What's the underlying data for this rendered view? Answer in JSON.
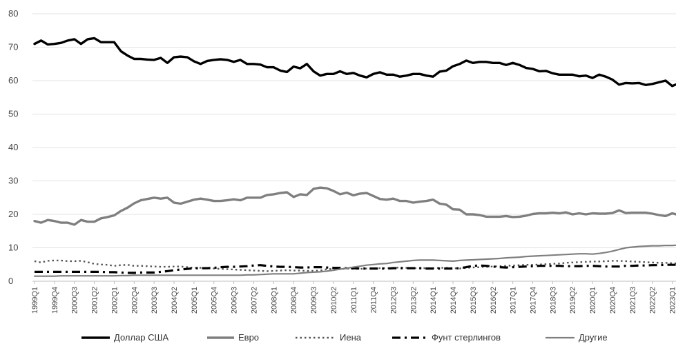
{
  "chart_data": {
    "type": "line",
    "title": "",
    "xlabel": "",
    "ylabel": "",
    "ylim": [
      0,
      80
    ],
    "yticks": [
      0,
      10,
      20,
      30,
      40,
      50,
      60,
      70,
      80
    ],
    "grid": "horizontal",
    "legend_position": "bottom",
    "x": [
      "1999Q1",
      "1999Q2",
      "1999Q3",
      "1999Q4",
      "2000Q1",
      "2000Q2",
      "2000Q3",
      "2000Q4",
      "2001Q1",
      "2001Q2",
      "2001Q3",
      "2001Q4",
      "2002Q1",
      "2002Q2",
      "2002Q3",
      "2002Q4",
      "2003Q1",
      "2003Q2",
      "2003Q3",
      "2003Q4",
      "2004Q1",
      "2004Q2",
      "2004Q3",
      "2004Q4",
      "2005Q1",
      "2005Q2",
      "2005Q3",
      "2005Q4",
      "2006Q1",
      "2006Q2",
      "2006Q3",
      "2006Q4",
      "2007Q1",
      "2007Q2",
      "2007Q3",
      "2007Q4",
      "2008Q1",
      "2008Q2",
      "2008Q3",
      "2008Q4",
      "2009Q1",
      "2009Q2",
      "2009Q3",
      "2009Q4",
      "2010Q1",
      "2010Q2",
      "2010Q3",
      "2010Q4",
      "2011Q1",
      "2011Q2",
      "2011Q3",
      "2011Q4",
      "2012Q1",
      "2012Q2",
      "2012Q3",
      "2012Q4",
      "2013Q1",
      "2013Q2",
      "2013Q3",
      "2013Q4",
      "2014Q1",
      "2014Q2",
      "2014Q3",
      "2014Q4",
      "2015Q1",
      "2015Q2",
      "2015Q3",
      "2015Q4",
      "2016Q1",
      "2016Q2",
      "2016Q3",
      "2016Q4",
      "2017Q1",
      "2017Q2",
      "2017Q3",
      "2017Q4",
      "2018Q1",
      "2018Q2",
      "2018Q3",
      "2018Q4",
      "2019Q1",
      "2019Q2",
      "2019Q3",
      "2019Q4",
      "2020Q1",
      "2020Q2",
      "2020Q3",
      "2020Q4",
      "2021Q1",
      "2021Q2",
      "2021Q3",
      "2021Q4",
      "2022Q1",
      "2022Q2",
      "2022Q3",
      "2022Q4",
      "2023Q1",
      "2023Q2"
    ],
    "x_tick_labels": [
      "1999Q1",
      "1999Q4",
      "2000Q3",
      "2001Q2",
      "2002Q1",
      "2002Q4",
      "2003Q3",
      "2004Q2",
      "2005Q1",
      "2005Q4",
      "2006Q3",
      "2007Q2",
      "2008Q1",
      "2008Q4",
      "2009Q3",
      "2010Q2",
      "2011Q1",
      "2011Q4",
      "2012Q3",
      "2013Q2",
      "2014Q1",
      "2014Q4",
      "2015Q3",
      "2016Q2",
      "2017Q1",
      "2017Q4",
      "2018Q3",
      "2019Q2",
      "2020Q1",
      "2020Q4",
      "2021Q3",
      "2022Q2",
      "2023Q1"
    ],
    "series": [
      {
        "name": "Доллар США",
        "color": "#000000",
        "style": "solid-thick",
        "values": [
          71.0,
          72.0,
          70.8,
          71.0,
          71.3,
          72.0,
          72.4,
          71.0,
          72.4,
          72.7,
          71.5,
          71.5,
          71.5,
          68.8,
          67.5,
          66.5,
          66.5,
          66.3,
          66.2,
          66.8,
          65.3,
          67.0,
          67.2,
          67.0,
          65.8,
          65.0,
          65.9,
          66.2,
          66.4,
          66.2,
          65.6,
          66.2,
          65.0,
          65.0,
          64.8,
          64.0,
          64.0,
          63.0,
          62.6,
          64.2,
          63.7,
          65.0,
          62.8,
          61.5,
          62.0,
          62.0,
          62.8,
          62.0,
          62.3,
          61.5,
          61.0,
          62.0,
          62.5,
          61.8,
          61.8,
          61.2,
          61.5,
          62.0,
          62.0,
          61.5,
          61.2,
          62.7,
          63.0,
          64.3,
          65.0,
          66.0,
          65.3,
          65.6,
          65.6,
          65.3,
          65.3,
          64.7,
          65.3,
          64.7,
          63.8,
          63.5,
          62.8,
          62.9,
          62.2,
          61.8,
          61.8,
          61.8,
          61.3,
          61.5,
          60.8,
          61.8,
          61.2,
          60.3,
          58.8,
          59.3,
          59.2,
          59.3,
          58.7,
          59.0,
          59.5,
          60.0,
          58.4,
          59.2
        ]
      },
      {
        "name": "Евро",
        "color": "#7f7f7f",
        "style": "solid-thick",
        "values": [
          18.0,
          17.5,
          18.3,
          18.0,
          17.5,
          17.5,
          16.9,
          18.3,
          17.8,
          17.8,
          18.8,
          19.2,
          19.7,
          21.0,
          22.0,
          23.3,
          24.2,
          24.6,
          25.0,
          24.7,
          25.0,
          23.5,
          23.2,
          23.8,
          24.4,
          24.7,
          24.4,
          24.0,
          24.0,
          24.2,
          24.5,
          24.2,
          25.0,
          25.0,
          25.0,
          25.8,
          26.0,
          26.4,
          26.6,
          25.2,
          26.0,
          25.8,
          27.6,
          28.0,
          27.8,
          27.0,
          26.0,
          26.5,
          25.7,
          26.2,
          26.4,
          25.5,
          24.6,
          24.4,
          24.7,
          24.0,
          24.0,
          23.5,
          23.8,
          24.0,
          24.4,
          23.2,
          22.9,
          21.5,
          21.4,
          20.0,
          20.0,
          19.8,
          19.3,
          19.3,
          19.3,
          19.5,
          19.2,
          19.3,
          19.6,
          20.1,
          20.3,
          20.3,
          20.5,
          20.3,
          20.6,
          20.0,
          20.3,
          20.0,
          20.3,
          20.2,
          20.2,
          20.4,
          21.2,
          20.4,
          20.5,
          20.5,
          20.5,
          20.2,
          19.8,
          19.5,
          20.3,
          19.8
        ]
      },
      {
        "name": "Иена",
        "color": "#555555",
        "style": "dotted",
        "values": [
          6.0,
          5.6,
          6.1,
          6.2,
          6.2,
          6.0,
          6.0,
          6.1,
          5.7,
          5.2,
          5.0,
          4.9,
          4.6,
          4.8,
          4.9,
          4.6,
          4.6,
          4.5,
          4.4,
          4.3,
          4.3,
          4.4,
          4.4,
          4.2,
          4.0,
          4.0,
          3.9,
          3.8,
          3.7,
          3.6,
          3.5,
          3.4,
          3.3,
          3.2,
          3.1,
          3.0,
          3.1,
          3.2,
          3.3,
          3.2,
          3.2,
          3.1,
          3.1,
          3.2,
          3.6,
          3.7,
          3.6,
          3.8,
          3.7,
          3.7,
          3.8,
          3.8,
          3.9,
          3.9,
          4.0,
          4.1,
          4.0,
          3.9,
          3.9,
          3.9,
          3.9,
          4.0,
          4.0,
          3.9,
          3.8,
          4.0,
          4.1,
          4.2,
          4.3,
          4.4,
          4.5,
          4.6,
          4.7,
          4.8,
          4.9,
          4.9,
          5.0,
          5.1,
          5.2,
          5.3,
          5.5,
          5.6,
          5.7,
          5.8,
          5.9,
          5.9,
          6.0,
          6.1,
          6.1,
          6.0,
          5.9,
          5.8,
          5.7,
          5.6,
          5.5,
          5.5,
          5.4,
          5.3
        ]
      },
      {
        "name": "Фунт стерлингов",
        "color": "#000000",
        "style": "dash-dot",
        "values": [
          2.8,
          2.8,
          2.8,
          2.8,
          2.8,
          2.8,
          2.8,
          2.8,
          2.8,
          2.8,
          2.8,
          2.7,
          2.7,
          2.6,
          2.5,
          2.5,
          2.6,
          2.6,
          2.6,
          2.8,
          3.0,
          3.3,
          3.5,
          3.7,
          3.9,
          3.9,
          3.9,
          4.0,
          4.2,
          4.3,
          4.3,
          4.4,
          4.5,
          4.7,
          4.8,
          4.6,
          4.4,
          4.3,
          4.3,
          4.2,
          4.1,
          4.1,
          4.2,
          4.2,
          4.1,
          4.0,
          4.0,
          3.9,
          3.9,
          3.8,
          3.8,
          3.8,
          3.8,
          3.8,
          3.9,
          3.9,
          3.9,
          3.9,
          3.9,
          3.8,
          3.8,
          3.8,
          3.8,
          3.8,
          3.9,
          4.2,
          4.6,
          4.7,
          4.6,
          4.4,
          4.2,
          4.1,
          4.2,
          4.3,
          4.4,
          4.5,
          4.6,
          4.6,
          4.6,
          4.6,
          4.5,
          4.5,
          4.5,
          4.6,
          4.6,
          4.5,
          4.4,
          4.4,
          4.4,
          4.6,
          4.6,
          4.7,
          4.7,
          4.8,
          4.8,
          4.9,
          4.9,
          4.9
        ]
      },
      {
        "name": "Другие",
        "color": "#7f7f7f",
        "style": "solid-thin",
        "values": [
          1.5,
          1.5,
          1.5,
          1.5,
          1.6,
          1.6,
          1.6,
          1.6,
          1.6,
          1.6,
          1.6,
          1.6,
          1.6,
          1.7,
          1.7,
          1.8,
          1.8,
          1.8,
          1.8,
          1.8,
          1.8,
          1.8,
          1.8,
          1.8,
          1.8,
          1.8,
          1.8,
          1.8,
          1.8,
          1.8,
          1.8,
          1.8,
          1.9,
          1.9,
          2.0,
          2.1,
          2.2,
          2.2,
          2.2,
          2.2,
          2.4,
          2.6,
          2.7,
          2.8,
          3.0,
          3.3,
          3.6,
          3.9,
          4.2,
          4.5,
          4.8,
          5.0,
          5.2,
          5.3,
          5.6,
          5.8,
          6.0,
          6.2,
          6.3,
          6.3,
          6.3,
          6.2,
          6.1,
          6.0,
          6.2,
          6.3,
          6.4,
          6.5,
          6.6,
          6.7,
          6.8,
          7.0,
          7.1,
          7.2,
          7.4,
          7.5,
          7.6,
          7.7,
          7.8,
          7.9,
          8.0,
          8.1,
          8.2,
          8.2,
          8.1,
          8.3,
          8.6,
          9.0,
          9.5,
          10.0,
          10.2,
          10.4,
          10.5,
          10.6,
          10.6,
          10.7,
          10.7,
          10.8
        ]
      }
    ]
  }
}
